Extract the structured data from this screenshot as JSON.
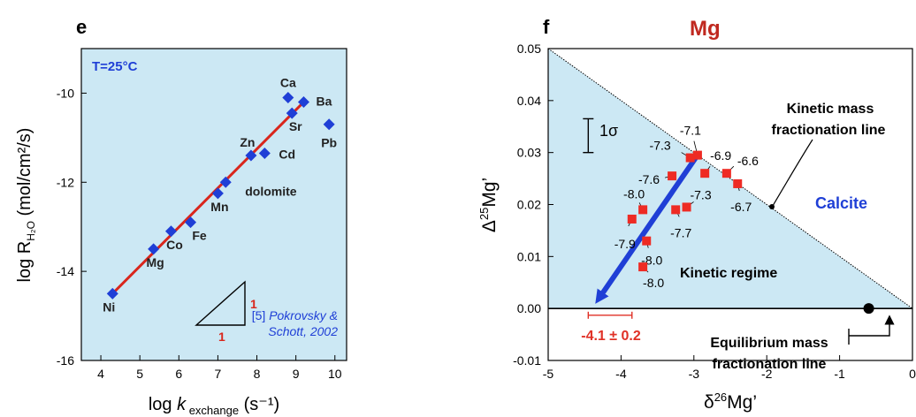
{
  "chart_data": [
    {
      "type": "scatter",
      "panel_label": "e",
      "xlabel_main": "log ",
      "xlabel_italic": "k",
      "xlabel_sub": " exchange",
      "xlabel_units": " (s⁻¹)",
      "ylabel_main": "log R",
      "ylabel_sub": "H₂O",
      "ylabel_units": " (mol/cm²/s)",
      "xlim": [
        3.5,
        10.3
      ],
      "ylim": [
        -16,
        -9
      ],
      "xticks": [
        4,
        5,
        6,
        7,
        8,
        9,
        10
      ],
      "yticks": [
        -16,
        -14,
        -12,
        -10
      ],
      "grid": false,
      "temperature_label": "T=25°C",
      "citation_line1_ref": "[5] ",
      "citation_line1_text": "Pokrovsky &",
      "citation_line2": "Schott, 2002",
      "slope_label_vertical": "1",
      "slope_label_horizontal": "1",
      "colors": {
        "background": "#cce8f4",
        "points": "#1f3fd6",
        "fit_line": "#d9261c",
        "labels": "#222222"
      },
      "points": [
        {
          "label": "Ni",
          "x": 4.3,
          "y": -14.5
        },
        {
          "label": "Mg",
          "x": 5.35,
          "y": -13.5
        },
        {
          "label": "Co",
          "x": 5.8,
          "y": -13.1
        },
        {
          "label": "Fe",
          "x": 6.3,
          "y": -12.9
        },
        {
          "label": "Mn",
          "x": 7.0,
          "y": -12.25
        },
        {
          "label": "dolomite",
          "x": 7.2,
          "y": -12.0
        },
        {
          "label": "Zn",
          "x": 7.85,
          "y": -11.4
        },
        {
          "label": "Cd",
          "x": 8.2,
          "y": -11.35
        },
        {
          "label": "Ca",
          "x": 8.8,
          "y": -10.1
        },
        {
          "label": "Sr",
          "x": 8.9,
          "y": -10.45
        },
        {
          "label": "Ba",
          "x": 9.2,
          "y": -10.2
        },
        {
          "label": "Pb",
          "x": 9.85,
          "y": -10.7
        }
      ],
      "fit_line": {
        "x": [
          4.3,
          9.2
        ],
        "y": [
          -14.5,
          -10.2
        ]
      }
    },
    {
      "type": "scatter",
      "panel_label": "f",
      "title": "Mg",
      "xlabel_main": "δ",
      "xlabel_sup": "26",
      "xlabel_end": "Mg’",
      "ylabel_main": "Δ",
      "ylabel_sup": "25",
      "ylabel_end": "Mg’",
      "xlim": [
        -5,
        0
      ],
      "ylim": [
        -0.01,
        0.05
      ],
      "xticks": [
        -5,
        -4,
        -3,
        -2,
        -1,
        0
      ],
      "yticks": [
        -0.01,
        0.0,
        0.01,
        0.02,
        0.03,
        0.04,
        0.05
      ],
      "ytick_labels": [
        "-0.01",
        "0.00",
        "0.01",
        "0.02",
        "0.03",
        "0.04",
        "0.05"
      ],
      "grid": false,
      "sigma_label": "1σ",
      "region_calcite": "Calcite",
      "region_kinetic": "Kinetic regime",
      "kinetic_line_label_1": "Kinetic mass",
      "kinetic_line_label_2": "fractionation line",
      "equilibrium_line_label_1": "Equilibrium mass",
      "equilibrium_line_label_2": "fractionation line",
      "slope_label": "-4.1 ± 0.2",
      "colors": {
        "background": "#cce8f4",
        "title": "#c0281f",
        "points": "#ee2b24",
        "arrow": "#1f3fd6",
        "calcite": "#1f3fd6",
        "slope_label": "#e03026"
      },
      "points": [
        {
          "label": "-7.1",
          "x": -2.95,
          "y": 0.0295
        },
        {
          "label": "-7.3",
          "x": -3.05,
          "y": 0.029
        },
        {
          "label": "-6.9",
          "x": -2.85,
          "y": 0.026
        },
        {
          "label": "-6.6",
          "x": -2.55,
          "y": 0.026
        },
        {
          "label": "-7.6",
          "x": -3.3,
          "y": 0.0255
        },
        {
          "label": "-6.7",
          "x": -2.4,
          "y": 0.024
        },
        {
          "label": "-7.3",
          "x": -3.1,
          "y": 0.0195
        },
        {
          "label": "-7.7",
          "x": -3.25,
          "y": 0.019
        },
        {
          "label": "-8.0",
          "x": -3.7,
          "y": 0.019
        },
        {
          "label": "-7.9",
          "x": -3.85,
          "y": 0.0172
        },
        {
          "label": "-8.0",
          "x": -3.65,
          "y": 0.013
        },
        {
          "label": "-8.0",
          "x": -3.7,
          "y": 0.008
        }
      ],
      "kinetic_line": {
        "x": [
          -5,
          0
        ],
        "y": [
          0.05,
          0.0
        ]
      },
      "arrow": {
        "from": [
          -2.95,
          0.0295
        ],
        "to": [
          -4.3,
          0.002
        ]
      },
      "equilibrium_point": {
        "x": -0.6,
        "y": 0.0
      },
      "sigma_bar": {
        "x": -4.45,
        "y_low": 0.03,
        "y_high": 0.0365
      },
      "slope_error_bar": {
        "x": [
          -4.45,
          -3.85
        ],
        "y": -0.0013
      }
    }
  ]
}
